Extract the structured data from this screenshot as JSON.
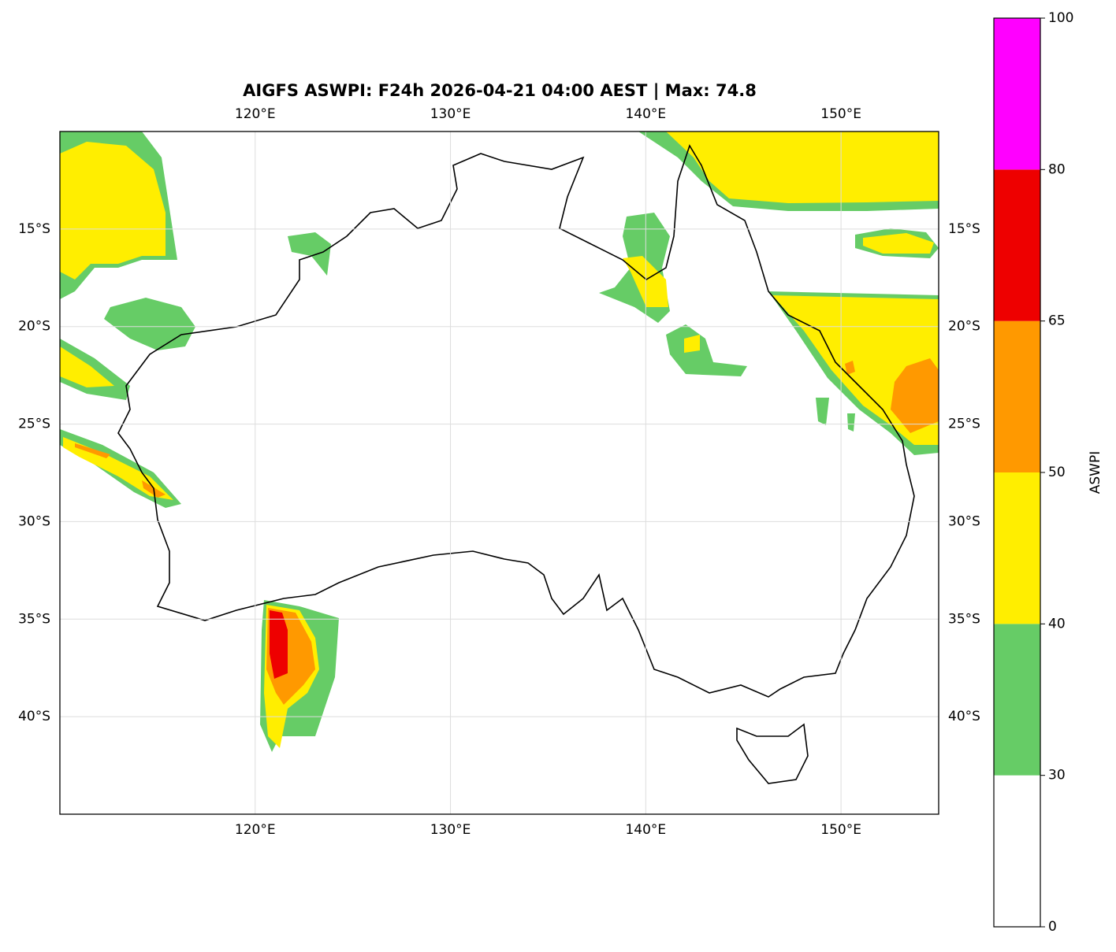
{
  "chart_data": {
    "type": "map",
    "title": "AIGFS ASWPI: F24h 2026-04-21 04:00 AEST | Max: 74.8",
    "xlim": [
      110,
      155
    ],
    "ylim": [
      -45,
      -10
    ],
    "xticks": [
      {
        "value": 120,
        "label": "120°E"
      },
      {
        "value": 130,
        "label": "130°E"
      },
      {
        "value": 140,
        "label": "140°E"
      },
      {
        "value": 150,
        "label": "150°E"
      }
    ],
    "yticks": [
      {
        "value": -15,
        "label": "15°S"
      },
      {
        "value": -20,
        "label": "20°S"
      },
      {
        "value": -25,
        "label": "25°S"
      },
      {
        "value": -30,
        "label": "30°S"
      },
      {
        "value": -35,
        "label": "35°S"
      },
      {
        "value": -40,
        "label": "40°S"
      }
    ],
    "grid": true,
    "colorbar": {
      "label": "ASWPI",
      "levels": [
        0,
        30,
        40,
        50,
        65,
        80,
        100
      ],
      "colors": [
        "#ffffff",
        "#66cc66",
        "#ffee00",
        "#ff9900",
        "#ee0000",
        "#ff00ff"
      ]
    }
  }
}
